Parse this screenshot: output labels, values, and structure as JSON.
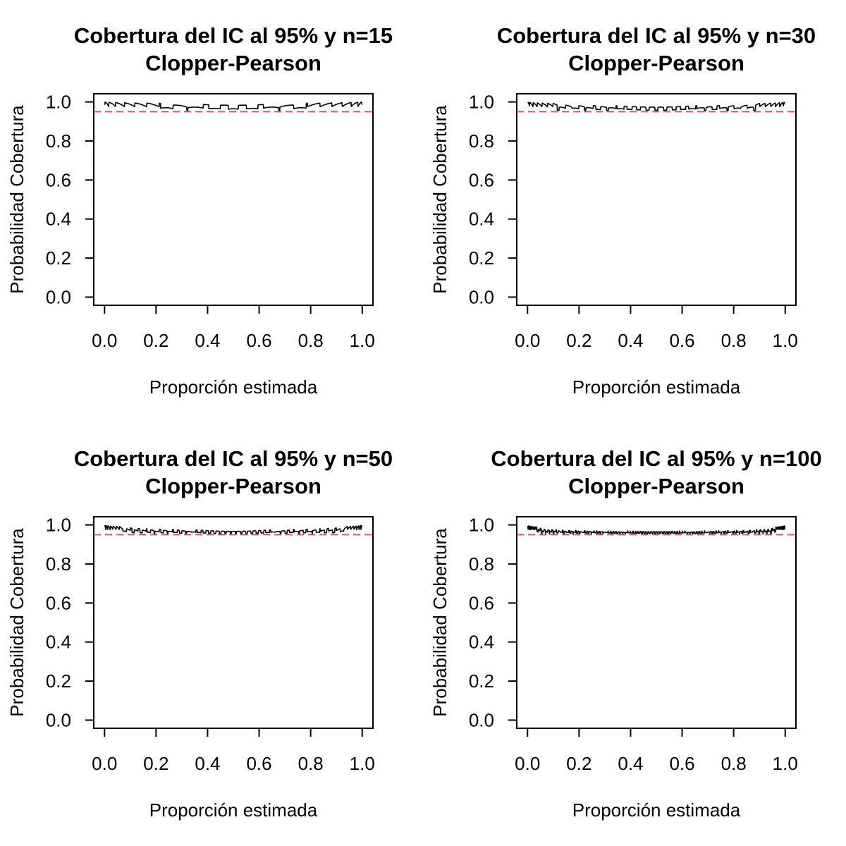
{
  "chart_data": [
    {
      "type": "line",
      "title": "Cobertura del IC al 95% y n=15",
      "subtitle": "Clopper-Pearson",
      "xlabel": "Proporción estimada",
      "ylabel": "Probabilidad Cobertura",
      "xlim": [
        0,
        1
      ],
      "ylim": [
        0,
        1
      ],
      "xticks": [
        "0.0",
        "0.2",
        "0.4",
        "0.6",
        "0.8",
        "1.0"
      ],
      "yticks": [
        "0.0",
        "0.2",
        "0.4",
        "0.6",
        "0.8",
        "1.0"
      ],
      "n": 15,
      "confidence": 0.95,
      "reference_line": {
        "y": 0.95,
        "style": "dashed",
        "color": "#DF536B"
      },
      "series_color": "#000000",
      "grid": false
    },
    {
      "type": "line",
      "title": "Cobertura del IC al 95% y n=30",
      "subtitle": "Clopper-Pearson",
      "xlabel": "Proporción estimada",
      "ylabel": "Probabilidad Cobertura",
      "xlim": [
        0,
        1
      ],
      "ylim": [
        0,
        1
      ],
      "xticks": [
        "0.0",
        "0.2",
        "0.4",
        "0.6",
        "0.8",
        "1.0"
      ],
      "yticks": [
        "0.0",
        "0.2",
        "0.4",
        "0.6",
        "0.8",
        "1.0"
      ],
      "n": 30,
      "confidence": 0.95,
      "reference_line": {
        "y": 0.95,
        "style": "dashed",
        "color": "#DF536B"
      },
      "series_color": "#000000",
      "grid": false
    },
    {
      "type": "line",
      "title": "Cobertura del IC al 95% y n=50",
      "subtitle": "Clopper-Pearson",
      "xlabel": "Proporción estimada",
      "ylabel": "Probabilidad Cobertura",
      "xlim": [
        0,
        1
      ],
      "ylim": [
        0,
        1
      ],
      "xticks": [
        "0.0",
        "0.2",
        "0.4",
        "0.6",
        "0.8",
        "1.0"
      ],
      "yticks": [
        "0.0",
        "0.2",
        "0.4",
        "0.6",
        "0.8",
        "1.0"
      ],
      "n": 50,
      "confidence": 0.95,
      "reference_line": {
        "y": 0.95,
        "style": "dashed",
        "color": "#DF536B"
      },
      "series_color": "#000000",
      "grid": false
    },
    {
      "type": "line",
      "title": "Cobertura del IC al 95% y n=100",
      "subtitle": "Clopper-Pearson",
      "xlabel": "Proporción estimada",
      "ylabel": "Probabilidad Cobertura",
      "xlim": [
        0,
        1
      ],
      "ylim": [
        0,
        1
      ],
      "xticks": [
        "0.0",
        "0.2",
        "0.4",
        "0.6",
        "0.8",
        "1.0"
      ],
      "yticks": [
        "0.0",
        "0.2",
        "0.4",
        "0.6",
        "0.8",
        "1.0"
      ],
      "n": 100,
      "confidence": 0.95,
      "reference_line": {
        "y": 0.95,
        "style": "dashed",
        "color": "#DF536B"
      },
      "series_color": "#000000",
      "grid": false
    }
  ]
}
